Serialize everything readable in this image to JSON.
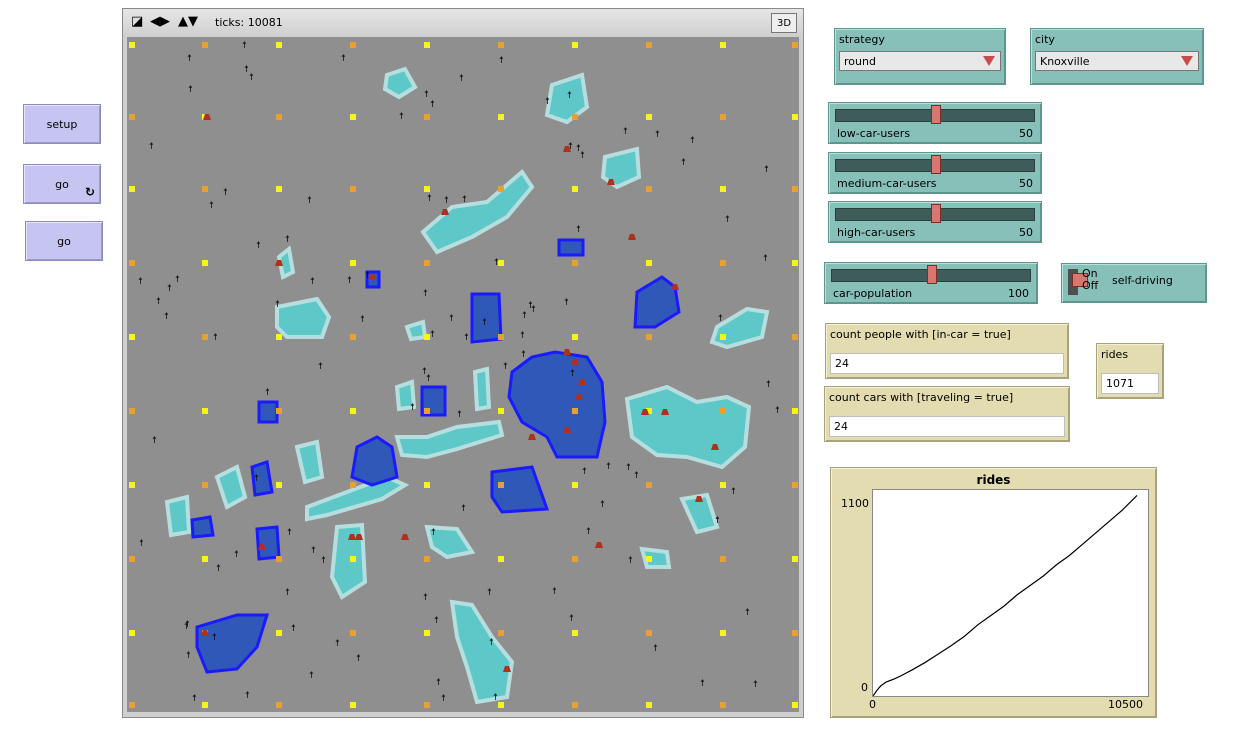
{
  "buttons": {
    "setup": "setup",
    "go_forever": "go",
    "go_once": "go"
  },
  "view": {
    "ticks_label": "ticks: 10081",
    "three_d_label": "3D"
  },
  "choosers": {
    "strategy": {
      "label": "strategy",
      "value": "round"
    },
    "city": {
      "label": "city",
      "value": "Knoxville"
    }
  },
  "sliders": {
    "low": {
      "label": "low-car-users",
      "value": "50",
      "fraction": 0.5
    },
    "medium": {
      "label": "medium-car-users",
      "value": "50",
      "fraction": 0.5
    },
    "high": {
      "label": "high-car-users",
      "value": "50",
      "fraction": 0.5
    },
    "cars": {
      "label": "car-population",
      "value": "100",
      "fraction": 0.5
    }
  },
  "switch": {
    "label": "self-driving",
    "on_label": "On",
    "off_label": "Off",
    "state": "on"
  },
  "monitors": {
    "people_in_car": {
      "label": "count people with [in-car = true]",
      "value": "24"
    },
    "cars_traveling": {
      "label": "count cars with [traveling = true]",
      "value": "24"
    },
    "rides": {
      "label": "rides",
      "value": "1071"
    }
  },
  "chart_data": {
    "type": "line",
    "title": "rides",
    "xlabel": "",
    "ylabel": "",
    "xlim": [
      0,
      10500
    ],
    "ylim": [
      0,
      1100
    ],
    "x_tick_labels": [
      "0",
      "10500"
    ],
    "y_tick_labels": [
      "0",
      "1100"
    ],
    "series": [
      {
        "x": [
          0,
          150,
          300,
          500,
          800,
          1100,
          1500,
          2000,
          2500,
          3000,
          3500,
          4000,
          4500,
          5000,
          5500,
          6000,
          6500,
          7000,
          7500,
          8000,
          8500,
          9000,
          9500,
          10081
        ],
        "y": [
          0,
          30,
          55,
          75,
          90,
          110,
          140,
          180,
          225,
          270,
          320,
          380,
          430,
          480,
          540,
          590,
          640,
          700,
          750,
          810,
          870,
          930,
          990,
          1071
        ]
      }
    ],
    "color": "#000000"
  },
  "colors": {
    "patch_gray": "#8f8f8f",
    "water_light": "#5ec8c8",
    "water_dark": "#3058b8",
    "water_edge": "#1a1aff",
    "intersection_yellow": "#f5f518",
    "car_red": "#b03020"
  }
}
